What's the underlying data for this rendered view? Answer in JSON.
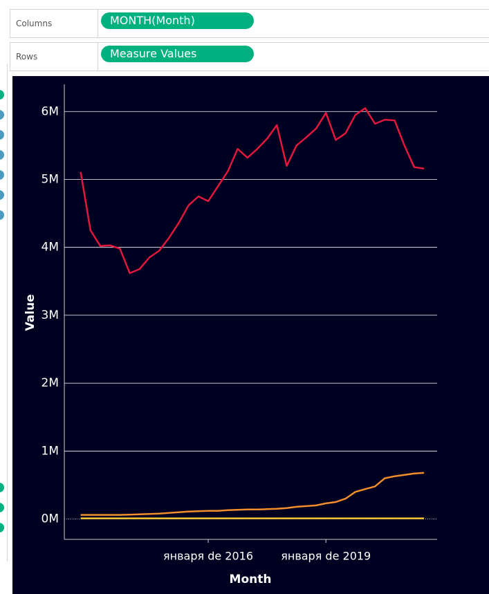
{
  "shelves": {
    "columns_label": "Columns",
    "columns_pill": "MONTH(Month)",
    "rows_label": "Rows",
    "rows_pill": "Measure Values"
  },
  "chart_data": {
    "type": "line",
    "x_label": "Month",
    "y_label": "Value",
    "x": [
      "2012-10",
      "2013-01",
      "2013-04",
      "2013-07",
      "2013-10",
      "2014-01",
      "2014-04",
      "2014-07",
      "2014-10",
      "2015-01",
      "2015-04",
      "2015-07",
      "2015-10",
      "2016-01",
      "2016-04",
      "2016-07",
      "2016-10",
      "2017-01",
      "2017-04",
      "2017-07",
      "2017-10",
      "2018-01",
      "2018-04",
      "2018-07",
      "2018-10",
      "2019-01",
      "2019-04",
      "2019-07",
      "2019-10",
      "2020-01",
      "2020-04",
      "2020-07",
      "2020-10",
      "2021-01",
      "2021-04",
      "2021-07"
    ],
    "series": [
      {
        "color": "#e3173e",
        "values": [
          5110000,
          4250000,
          4020000,
          4030000,
          3980000,
          3620000,
          3680000,
          3850000,
          3950000,
          4140000,
          4360000,
          4620000,
          4750000,
          4680000,
          4900000,
          5120000,
          5450000,
          5320000,
          5450000,
          5600000,
          5800000,
          5200000,
          5500000,
          5620000,
          5750000,
          5980000,
          5580000,
          5680000,
          5950000,
          6050000,
          5820000,
          5880000,
          5870000,
          5500000,
          5180000,
          5160000
        ]
      },
      {
        "color": "#f28e2b",
        "values": [
          60000,
          60000,
          60000,
          60000,
          60000,
          65000,
          70000,
          75000,
          80000,
          90000,
          100000,
          110000,
          115000,
          120000,
          120000,
          130000,
          135000,
          140000,
          140000,
          145000,
          150000,
          160000,
          180000,
          190000,
          200000,
          230000,
          250000,
          300000,
          400000,
          440000,
          480000,
          600000,
          630000,
          650000,
          670000,
          680000
        ]
      },
      {
        "color": "#f7c631",
        "values": [
          10000,
          10000,
          10000,
          10000,
          10000,
          10000,
          10000,
          10000,
          10000,
          10000,
          10000,
          10000,
          10000,
          10000,
          10000,
          10000,
          10000,
          10000,
          10000,
          10000,
          10000,
          10000,
          10000,
          10000,
          10000,
          10000,
          10000,
          10000,
          10000,
          10000,
          10000,
          10000,
          10000,
          10000,
          10000,
          10000
        ]
      }
    ],
    "xlim": [
      "2012-05",
      "2021-11"
    ],
    "xticks": [
      {
        "value": "2016-01",
        "label": "января de 2016"
      },
      {
        "value": "2019-01",
        "label": "января de 2019"
      }
    ],
    "ylim": [
      -300000,
      6400000
    ],
    "yticks": [
      {
        "value": 0,
        "label": "0M"
      },
      {
        "value": 1000000,
        "label": "1M"
      },
      {
        "value": 2000000,
        "label": "2M"
      },
      {
        "value": 3000000,
        "label": "3M"
      },
      {
        "value": 4000000,
        "label": "4M"
      },
      {
        "value": 5000000,
        "label": "5M"
      },
      {
        "value": 6000000,
        "label": "6M"
      }
    ],
    "grid": true
  }
}
